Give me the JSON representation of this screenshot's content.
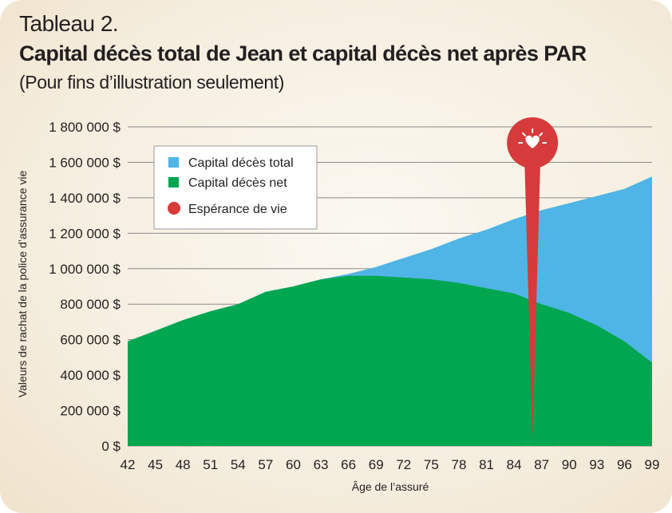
{
  "header": {
    "label": "Tableau 2.",
    "title": "Capital décès total de Jean et capital décès net après PAR",
    "subtitle": "(Pour fins d’illustration seulement)"
  },
  "colors": {
    "total": "#4fb4e6",
    "net": "#00a650",
    "life_expectancy": "#d63a3a",
    "grid": "#8a8a8a"
  },
  "icons": {
    "pin": "heart-icon"
  },
  "chart_data": {
    "type": "area",
    "xlabel": "Âge de l’assuré",
    "ylabel": "Valeurs de rachat de la police d’assurance vie",
    "xlim": [
      42,
      99
    ],
    "ylim": [
      0,
      1800000
    ],
    "x_ticks": [
      "42",
      "45",
      "48",
      "51",
      "54",
      "57",
      "60",
      "63",
      "66",
      "69",
      "72",
      "75",
      "78",
      "81",
      "84",
      "87",
      "90",
      "93",
      "96",
      "99"
    ],
    "y_ticks": [
      "0 $",
      "200 000 $",
      "400 000 $",
      "600 000 $",
      "800 000 $",
      "1 000 000 $",
      "1 200 000 $",
      "1 400 000 $",
      "1 600 000 $",
      "1 800 000 $"
    ],
    "y_tick_values": [
      0,
      200000,
      400000,
      600000,
      800000,
      1000000,
      1200000,
      1400000,
      1600000,
      1800000
    ],
    "x": [
      42,
      45,
      48,
      51,
      54,
      57,
      60,
      63,
      66,
      69,
      72,
      75,
      78,
      81,
      84,
      87,
      90,
      93,
      96,
      99
    ],
    "series": [
      {
        "name": "Capital décès total",
        "values": [
          590000,
          650000,
          710000,
          760000,
          800000,
          870000,
          900000,
          940000,
          970000,
          1010000,
          1060000,
          1110000,
          1170000,
          1220000,
          1280000,
          1330000,
          1370000,
          1410000,
          1450000,
          1520000
        ]
      },
      {
        "name": "Capital décès net",
        "values": [
          590000,
          650000,
          710000,
          760000,
          800000,
          870000,
          900000,
          940000,
          960000,
          960000,
          950000,
          940000,
          920000,
          890000,
          860000,
          800000,
          750000,
          680000,
          590000,
          470000
        ]
      }
    ],
    "life_expectancy": {
      "name": "Espérance de vie",
      "x": 86
    },
    "legend": "top-left"
  }
}
